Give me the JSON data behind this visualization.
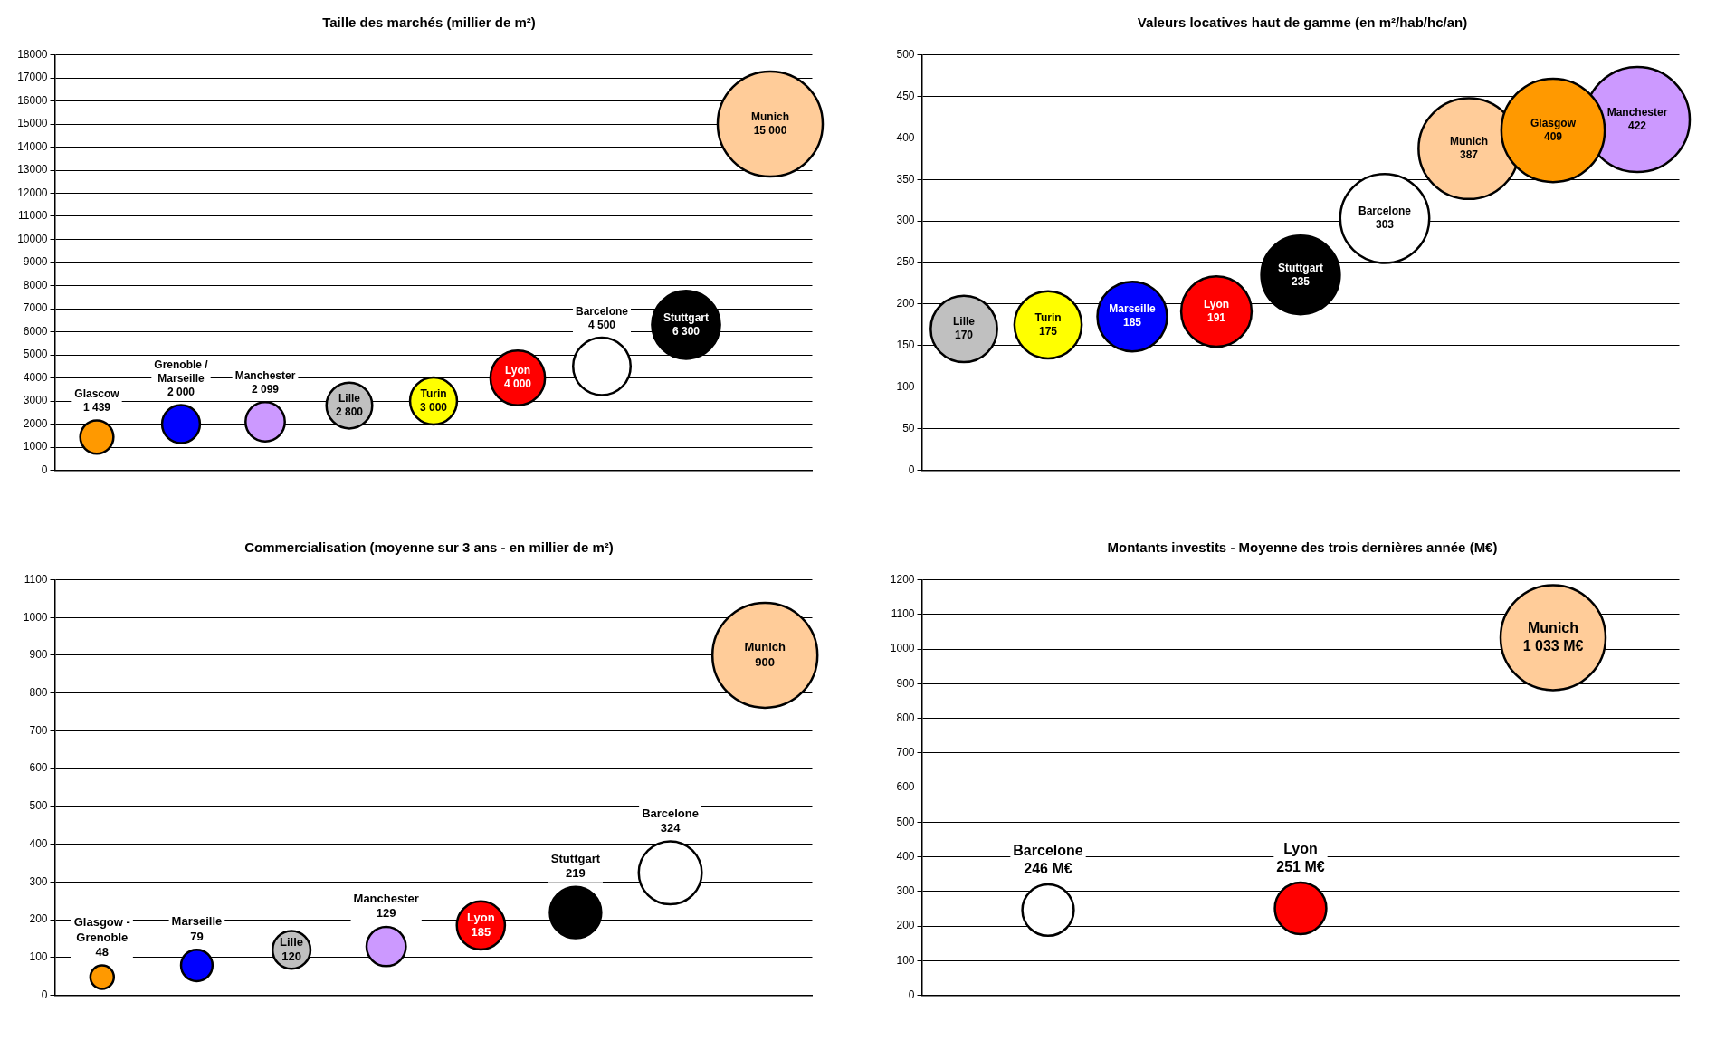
{
  "chart_data": [
    {
      "type": "bubble",
      "title": "Taille des marchés (millier de m²)",
      "categories": [
        null,
        null,
        null,
        null,
        null,
        null,
        null,
        null,
        null
      ],
      "ylim": [
        0,
        18000
      ],
      "yticks": [
        0,
        1000,
        2000,
        3000,
        4000,
        5000,
        6000,
        7000,
        8000,
        9000,
        10000,
        11000,
        12000,
        13000,
        14000,
        15000,
        16000,
        17000,
        18000
      ],
      "tick_labels": "y",
      "grid": "y",
      "series": [
        {
          "name": "Munich",
          "color": "#ffcc99",
          "values": [
            null,
            null,
            null,
            null,
            null,
            null,
            null,
            null,
            15000
          ],
          "sizes": [
            null,
            null,
            null,
            null,
            null,
            null,
            null,
            null,
            1
          ],
          "value_labels": [
            null,
            null,
            null,
            null,
            null,
            null,
            null,
            null,
            "15 000"
          ]
        },
        {
          "name": "Stuttgart",
          "color": "#000000",
          "values": [
            null,
            null,
            null,
            null,
            null,
            null,
            null,
            6300,
            null
          ],
          "sizes": [
            null,
            null,
            null,
            null,
            null,
            null,
            null,
            0.42,
            null
          ],
          "value_labels": [
            null,
            null,
            null,
            null,
            null,
            null,
            null,
            "6 300",
            null
          ]
        },
        {
          "name": "Barcelone",
          "color": "#ffffff",
          "values": [
            null,
            null,
            null,
            null,
            null,
            null,
            4500,
            null,
            null
          ],
          "sizes": [
            null,
            null,
            null,
            null,
            null,
            null,
            0.3,
            null,
            null
          ],
          "value_labels": [
            null,
            null,
            null,
            null,
            null,
            null,
            "4 500",
            null,
            null
          ]
        },
        {
          "name": "Lyon",
          "color": "#ff0000",
          "values": [
            null,
            null,
            null,
            null,
            null,
            4000,
            null,
            null,
            null
          ],
          "sizes": [
            null,
            null,
            null,
            null,
            null,
            0.27,
            null,
            null,
            null
          ],
          "value_labels": [
            null,
            null,
            null,
            null,
            null,
            "4 000",
            null,
            null,
            null
          ]
        },
        {
          "name": "Lille",
          "color": "#c0c0c0",
          "values": [
            null,
            null,
            null,
            2800,
            null,
            null,
            null,
            null,
            null
          ],
          "sizes": [
            null,
            null,
            null,
            0.19,
            null,
            null,
            null,
            null,
            null
          ],
          "value_labels": [
            null,
            null,
            null,
            "2 800",
            null,
            null,
            null,
            null,
            null
          ]
        },
        {
          "name": "Turin",
          "color": "#ffff00",
          "values": [
            null,
            null,
            null,
            null,
            3000,
            null,
            null,
            null,
            null
          ],
          "sizes": [
            null,
            null,
            null,
            null,
            0.2,
            null,
            null,
            null,
            null
          ],
          "value_labels": [
            null,
            null,
            null,
            null,
            "3 000",
            null,
            null,
            null,
            null
          ]
        },
        {
          "name": "Manchester",
          "color": "#cc99ff",
          "values": [
            null,
            null,
            2099,
            null,
            null,
            null,
            null,
            null,
            null
          ],
          "sizes": [
            null,
            null,
            0.14,
            null,
            null,
            null,
            null,
            null,
            null
          ],
          "value_labels": [
            null,
            null,
            "2 099",
            null,
            null,
            null,
            null,
            null,
            null
          ]
        },
        {
          "name": "Grenoble / Marseille",
          "color": "#0000ff",
          "values": [
            null,
            2000,
            null,
            null,
            null,
            null,
            null,
            null,
            null
          ],
          "sizes": [
            null,
            0.13,
            null,
            null,
            null,
            null,
            null,
            null,
            null
          ],
          "value_labels": [
            null,
            "2 000",
            null,
            null,
            null,
            null,
            null,
            null,
            null
          ]
        },
        {
          "name": "Glascow",
          "color": "#ff9900",
          "values": [
            1439,
            null,
            null,
            null,
            null,
            null,
            null,
            null,
            null
          ],
          "sizes": [
            0.1,
            null,
            null,
            null,
            null,
            null,
            null,
            null,
            null
          ],
          "value_labels": [
            "1 439",
            null,
            null,
            null,
            null,
            null,
            null,
            null,
            null
          ]
        }
      ]
    },
    {
      "type": "bubble",
      "title": "Valeurs locatives haut de gamme (en m²/hab/hc/an)",
      "categories": [
        null,
        null,
        null,
        null,
        null,
        null,
        null,
        null,
        null
      ],
      "ylim": [
        0,
        500
      ],
      "yticks": [
        0,
        50,
        100,
        150,
        200,
        250,
        300,
        350,
        400,
        450,
        500
      ],
      "tick_labels": "y",
      "grid": "y",
      "series": [
        {
          "name": "Manchester",
          "color": "#cc99ff",
          "values": [
            null,
            null,
            null,
            null,
            null,
            null,
            null,
            null,
            422
          ],
          "sizes": [
            null,
            null,
            null,
            null,
            null,
            null,
            null,
            null,
            1
          ],
          "value_labels": [
            null,
            null,
            null,
            null,
            null,
            null,
            null,
            null,
            "422"
          ]
        },
        {
          "name": "Munich",
          "color": "#ffcc99",
          "values": [
            null,
            null,
            null,
            null,
            null,
            null,
            387,
            null,
            null
          ],
          "sizes": [
            null,
            null,
            null,
            null,
            null,
            null,
            0.92,
            null,
            null
          ],
          "value_labels": [
            null,
            null,
            null,
            null,
            null,
            null,
            "387",
            null,
            null
          ]
        },
        {
          "name": "Glasgow",
          "color": "#ff9900",
          "values": [
            null,
            null,
            null,
            null,
            null,
            null,
            null,
            409,
            null
          ],
          "sizes": [
            null,
            null,
            null,
            null,
            null,
            null,
            null,
            0.97,
            null
          ],
          "value_labels": [
            null,
            null,
            null,
            null,
            null,
            null,
            null,
            "409",
            null
          ]
        },
        {
          "name": "Barcelone",
          "color": "#ffffff",
          "values": [
            null,
            null,
            null,
            null,
            null,
            303,
            null,
            null,
            null
          ],
          "sizes": [
            null,
            null,
            null,
            null,
            null,
            0.72,
            null,
            null,
            null
          ],
          "value_labels": [
            null,
            null,
            null,
            null,
            null,
            "303",
            null,
            null,
            null
          ]
        },
        {
          "name": "Stuttgart",
          "color": "#000000",
          "values": [
            null,
            null,
            null,
            null,
            235,
            null,
            null,
            null,
            null
          ],
          "sizes": [
            null,
            null,
            null,
            null,
            0.56,
            null,
            null,
            null,
            null
          ],
          "value_labels": [
            null,
            null,
            null,
            null,
            "235",
            null,
            null,
            null,
            null
          ]
        },
        {
          "name": "Lyon",
          "color": "#ff0000",
          "values": [
            null,
            null,
            null,
            191,
            null,
            null,
            null,
            null,
            null
          ],
          "sizes": [
            null,
            null,
            null,
            0.45,
            null,
            null,
            null,
            null,
            null
          ],
          "value_labels": [
            null,
            null,
            null,
            "191",
            null,
            null,
            null,
            null,
            null
          ]
        },
        {
          "name": "Marseille",
          "color": "#0000ff",
          "values": [
            null,
            null,
            185,
            null,
            null,
            null,
            null,
            null,
            null
          ],
          "sizes": [
            null,
            null,
            0.44,
            null,
            null,
            null,
            null,
            null,
            null
          ],
          "value_labels": [
            null,
            null,
            "185",
            null,
            null,
            null,
            null,
            null,
            null
          ]
        },
        {
          "name": "Lille",
          "color": "#c0c0c0",
          "values": [
            170,
            null,
            null,
            null,
            null,
            null,
            null,
            null,
            null
          ],
          "sizes": [
            0.4,
            null,
            null,
            null,
            null,
            null,
            null,
            null,
            null
          ],
          "value_labels": [
            "170",
            null,
            null,
            null,
            null,
            null,
            null,
            null,
            null
          ]
        },
        {
          "name": "Turin",
          "color": "#ffff00",
          "values": [
            null,
            175,
            null,
            null,
            null,
            null,
            null,
            null,
            null
          ],
          "sizes": [
            null,
            0.41,
            null,
            null,
            null,
            null,
            null,
            null,
            null
          ],
          "value_labels": [
            null,
            "175",
            null,
            null,
            null,
            null,
            null,
            null,
            null
          ]
        }
      ]
    },
    {
      "type": "bubble",
      "title": "Commercialisation (moyenne sur 3 ans - en millier de m²)",
      "categories": [
        null,
        null,
        null,
        null,
        null,
        null,
        null,
        null
      ],
      "ylim": [
        0,
        1100
      ],
      "yticks": [
        0,
        100,
        200,
        300,
        400,
        500,
        600,
        700,
        800,
        900,
        1000,
        1100
      ],
      "tick_labels": "y",
      "grid": "y",
      "series": [
        {
          "name": "Munich",
          "color": "#ffcc99",
          "values": [
            null,
            null,
            null,
            null,
            null,
            null,
            null,
            900
          ],
          "sizes": [
            null,
            null,
            null,
            null,
            null,
            null,
            null,
            1
          ],
          "value_labels": [
            null,
            null,
            null,
            null,
            null,
            null,
            null,
            "900"
          ]
        },
        {
          "name": "Barcelone",
          "color": "#ffffff",
          "values": [
            null,
            null,
            null,
            null,
            null,
            null,
            324,
            null
          ],
          "sizes": [
            null,
            null,
            null,
            null,
            null,
            null,
            0.36,
            null
          ],
          "value_labels": [
            null,
            null,
            null,
            null,
            null,
            null,
            "324",
            null
          ]
        },
        {
          "name": "Stuttgart",
          "color": "#000000",
          "values": [
            null,
            null,
            null,
            null,
            null,
            219,
            null,
            null
          ],
          "sizes": [
            null,
            null,
            null,
            null,
            null,
            0.24,
            null,
            null
          ],
          "value_labels": [
            null,
            null,
            null,
            null,
            null,
            "219",
            null,
            null
          ]
        },
        {
          "name": "Lyon",
          "color": "#ff0000",
          "values": [
            null,
            null,
            null,
            null,
            185,
            null,
            null,
            null
          ],
          "sizes": [
            null,
            null,
            null,
            null,
            0.21,
            null,
            null,
            null
          ],
          "value_labels": [
            null,
            null,
            null,
            null,
            "185",
            null,
            null,
            null
          ]
        },
        {
          "name": "Manchester",
          "color": "#cc99ff",
          "values": [
            null,
            null,
            null,
            129,
            null,
            null,
            null,
            null
          ],
          "sizes": [
            null,
            null,
            null,
            0.14,
            null,
            null,
            null,
            null
          ],
          "value_labels": [
            null,
            null,
            null,
            "129",
            null,
            null,
            null,
            null
          ]
        },
        {
          "name": "Lille",
          "color": "#c0c0c0",
          "values": [
            null,
            null,
            120,
            null,
            null,
            null,
            null,
            null
          ],
          "sizes": [
            null,
            null,
            0.13,
            null,
            null,
            null,
            null,
            null
          ],
          "value_labels": [
            null,
            null,
            "120",
            null,
            null,
            null,
            null,
            null
          ]
        },
        {
          "name": "Marseille",
          "color": "#0000ff",
          "values": [
            null,
            79,
            null,
            null,
            null,
            null,
            null,
            null
          ],
          "sizes": [
            null,
            0.09,
            null,
            null,
            null,
            null,
            null,
            null
          ],
          "value_labels": [
            null,
            "79",
            null,
            null,
            null,
            null,
            null,
            null
          ]
        },
        {
          "name": "Glasgow - Grenoble",
          "color": "#ff9900",
          "values": [
            48,
            null,
            null,
            null,
            null,
            null,
            null,
            null
          ],
          "sizes": [
            0.05,
            null,
            null,
            null,
            null,
            null,
            null,
            null
          ],
          "value_labels": [
            "48",
            null,
            null,
            null,
            null,
            null,
            null,
            null
          ]
        }
      ]
    },
    {
      "type": "bubble",
      "title": "Montants investits - Moyenne des trois dernières année (M€)",
      "categories": [
        null,
        null,
        null
      ],
      "ylim": [
        0,
        1200
      ],
      "yticks": [
        0,
        100,
        200,
        300,
        400,
        500,
        600,
        700,
        800,
        900,
        1000,
        1100,
        1200
      ],
      "tick_labels": "y",
      "grid": "y",
      "series": [
        {
          "name": "Munich",
          "color": "#ffcc99",
          "values": [
            null,
            null,
            1033
          ],
          "sizes": [
            null,
            null,
            1
          ],
          "value_labels": [
            null,
            null,
            "1 033 M€"
          ]
        },
        {
          "name": "Barcelone",
          "color": "#ffffff",
          "values": [
            246,
            null,
            null
          ],
          "sizes": [
            0.24,
            null,
            null
          ],
          "value_labels": [
            "246 M€",
            null,
            null
          ]
        },
        {
          "name": "Lyon",
          "color": "#ff0000",
          "values": [
            null,
            251,
            null
          ],
          "sizes": [
            null,
            0.24,
            null
          ],
          "value_labels": [
            null,
            "251 M€",
            null
          ]
        }
      ]
    }
  ]
}
